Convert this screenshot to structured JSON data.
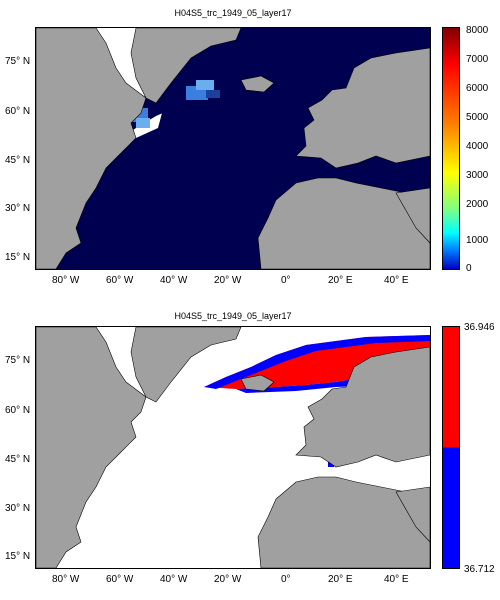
{
  "panels": [
    {
      "title": "H04S5_trc_1949_05_layer17",
      "lat_labels": [
        "75° N",
        "60° N",
        "45° N",
        "30° N",
        "15° N"
      ],
      "lon_labels": [
        "80° W",
        "60° W",
        "40° W",
        "20° W",
        "0°",
        "20° E",
        "40° E"
      ],
      "colorbar": {
        "ticks": [
          "8000",
          "7000",
          "6000",
          "5000",
          "4000",
          "3000",
          "2000",
          "1000",
          "0"
        ],
        "colormap": "jet",
        "range": [
          0,
          8000
        ]
      }
    },
    {
      "title": "H04S5_trc_1949_05_layer17",
      "lat_labels": [
        "75° N",
        "60° N",
        "45° N",
        "30° N",
        "15° N"
      ],
      "lon_labels": [
        "80° W",
        "60° W",
        "40° W",
        "20° W",
        "0°",
        "20° E",
        "40° E"
      ],
      "colorbar": {
        "max_label": "36.946",
        "min_label": "36.712",
        "colors": [
          "#ff0000",
          "#0000ff"
        ]
      }
    }
  ],
  "colors": {
    "land": "#a0a0a0",
    "ocean_low": "#000050",
    "no_data": "#ffffff",
    "high": "#ff0000",
    "low": "#0000ff"
  }
}
